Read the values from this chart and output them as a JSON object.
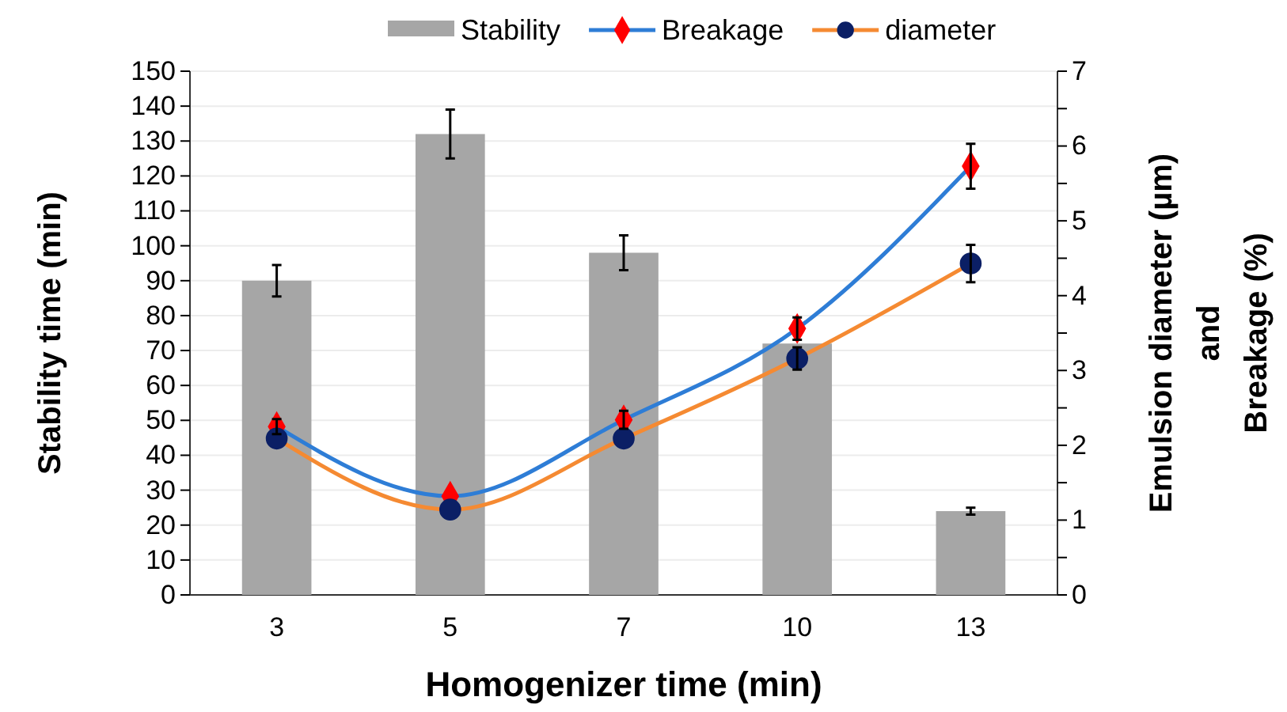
{
  "chart_data": {
    "type": "bar",
    "xlabel": "Homogenizer time (min)",
    "ylabel": "Stability time (min)",
    "y2label": "Emulsion diameter (µm)\nand\nBreakage (%)",
    "categories": [
      "3",
      "5",
      "7",
      "10",
      "13"
    ],
    "series": [
      {
        "name": "Stability",
        "color": "#a6a6a6",
        "values": [
          90,
          132,
          98,
          72,
          24
        ],
        "errors": [
          4.5,
          7,
          5,
          null,
          1
        ]
      },
      {
        "name": "Breakage",
        "type": "line",
        "axis": "y2",
        "color": "#2e7dd6",
        "colors": [
          "#ff0000",
          "#ff0000",
          "#ff0000",
          "#ff0000",
          "#ff0000"
        ],
        "marker": "diamond",
        "values": [
          2.25,
          1.32,
          2.34,
          3.56,
          5.73
        ],
        "errors": [
          0.1,
          null,
          0.12,
          0.15,
          0.3
        ]
      },
      {
        "name": "diameter",
        "type": "line",
        "axis": "y2",
        "color": "#f58a32",
        "colors": [
          "#0b1f65",
          "#0b1f65",
          "#0b1f65",
          "#0b1f65",
          "#0b1f65"
        ],
        "marker": "circle",
        "values": [
          2.09,
          1.14,
          2.09,
          3.16,
          4.43
        ],
        "errors": [
          null,
          null,
          null,
          0.15,
          0.25
        ]
      }
    ],
    "ylim": [
      0,
      150
    ],
    "yticks": [
      0,
      10,
      20,
      30,
      40,
      50,
      60,
      70,
      80,
      90,
      100,
      110,
      120,
      130,
      140,
      150
    ],
    "y2lim": [
      0,
      7
    ],
    "y2ticks": [
      0,
      {
        "value": 0.5,
        "label": null
      },
      1,
      {
        "value": 1.5,
        "label": null
      },
      2,
      {
        "value": 2.5,
        "label": null
      },
      3,
      {
        "value": 3.5,
        "label": null
      },
      4,
      {
        "value": 4.5,
        "label": null
      },
      5,
      {
        "value": 5.5,
        "label": null
      },
      6,
      {
        "value": 6.5,
        "label": null
      },
      7
    ],
    "grid": "y",
    "legend": "top right"
  }
}
